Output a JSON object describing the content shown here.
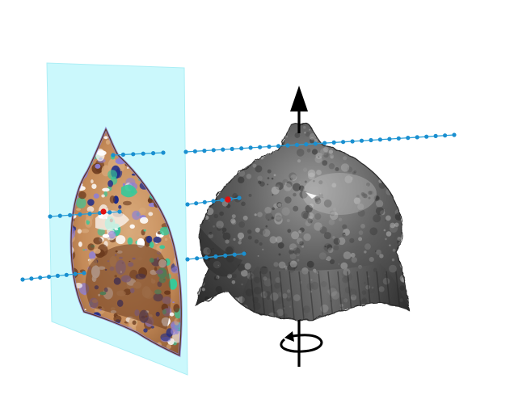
{
  "figure": {
    "background": "#ffffff",
    "plane_color": "#c9f8fc",
    "plane_edge_color": "#a8eef5",
    "probe_line_color": "#2a9fd6",
    "probe_point_color": "#1a8fd0",
    "highlight_point_color": "#e01010",
    "object_color": "#4a4a4a",
    "axis_color": "#000000",
    "slice_palette": [
      "#d7a779",
      "#6b3a1e",
      "#8e7fd6",
      "#35c99a",
      "#1b2a8a",
      "#ffffff"
    ]
  },
  "icons": {
    "axis_arrow": "up-arrow-icon",
    "rotation": "rotate-icon"
  }
}
